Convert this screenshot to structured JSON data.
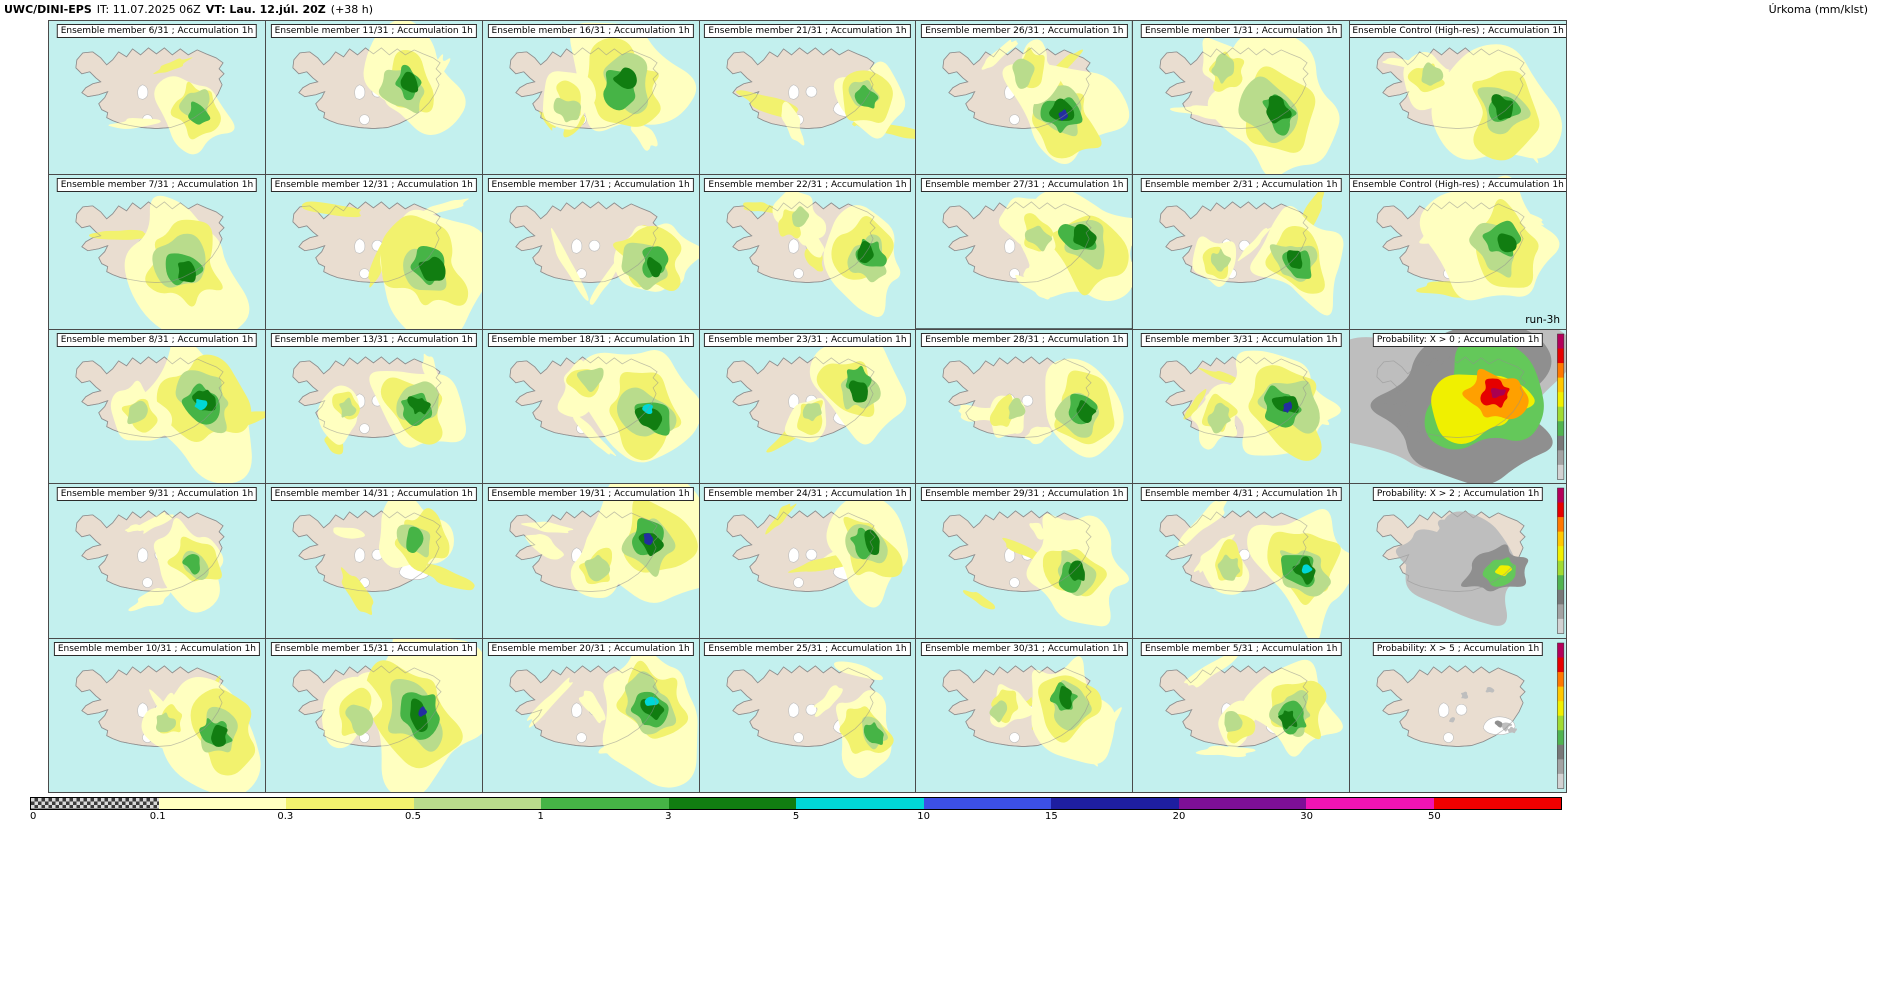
{
  "header": {
    "model": "UWC/DINI-EPS",
    "init": "IT: 11.07.2025 06Z",
    "valid": "VT: Lau. 12.júl. 20Z",
    "lead": "(+38 h)",
    "unit": "Úrkoma (mm/klst)"
  },
  "palette": {
    "ocean": "#c3f0ee",
    "land": "#e9ddd0",
    "coast": "#8f8f8f",
    "glacier": "#ffffff",
    "precip": [
      "#ffffc0",
      "#f2f26e",
      "#b9dc8c",
      "#46b446",
      "#117d11"
    ],
    "cyan": "#00d7d7",
    "navy": "#232da0"
  },
  "prob_colorbar_top_to_bottom": [
    "#b4005a",
    "#e60000",
    "#ff7800",
    "#ffc800",
    "#f0f000",
    "#a0dc32",
    "#50b450",
    "#787878",
    "#a3a3a3",
    "#d2d2d2"
  ],
  "legend": {
    "tick_labels": [
      "0",
      "0.1",
      "0.3",
      "0.5",
      "1",
      "3",
      "5",
      "10",
      "15",
      "20",
      "30",
      "50"
    ],
    "colors": [
      "checker",
      "#ffffc0",
      "#f2f26e",
      "#b9dc8c",
      "#46b446",
      "#117d11",
      "#00d7d7",
      "#3c50e6",
      "#1e1ea0",
      "#7d0f96",
      "#f014b4",
      "#f00000"
    ]
  },
  "panels": [
    {
      "title": "Ensemble member 6/31 ; Accumulation 1h",
      "kind": "member",
      "i": 1,
      "core": "none"
    },
    {
      "title": "Ensemble member 11/31 ; Accumulation 1h",
      "kind": "member",
      "i": 2,
      "core": "none"
    },
    {
      "title": "Ensemble member 16/31 ; Accumulation 1h",
      "kind": "member",
      "i": 3,
      "core": "none"
    },
    {
      "title": "Ensemble member 21/31 ; Accumulation 1h",
      "kind": "member",
      "i": 1,
      "core": "none"
    },
    {
      "title": "Ensemble member 26/31 ; Accumulation 1h",
      "kind": "member",
      "i": 3,
      "core": "navy",
      "selected": true
    },
    {
      "title": "Ensemble member 1/31 ; Accumulation 1h",
      "kind": "member",
      "i": 3,
      "core": "none"
    },
    {
      "title": "Ensemble Control (High-res) ; Accumulation 1h",
      "kind": "control",
      "i": 3,
      "core": "none"
    },
    {
      "title": "Ensemble member 7/31 ; Accumulation 1h",
      "kind": "member",
      "i": 3,
      "core": "none"
    },
    {
      "title": "Ensemble member 12/31 ; Accumulation 1h",
      "kind": "member",
      "i": 3,
      "core": "none"
    },
    {
      "title": "Ensemble member 17/31 ; Accumulation 1h",
      "kind": "member",
      "i": 2,
      "core": "none"
    },
    {
      "title": "Ensemble member 22/31 ; Accumulation 1h",
      "kind": "member",
      "i": 2,
      "core": "none"
    },
    {
      "title": "Ensemble member 27/31 ; Accumulation 1h",
      "kind": "member",
      "i": 3,
      "core": "none",
      "selected": true
    },
    {
      "title": "Ensemble member 2/31 ; Accumulation 1h",
      "kind": "member",
      "i": 2,
      "core": "none"
    },
    {
      "title": "Ensemble Control (High-res) ; Accumulation 1h",
      "kind": "control",
      "i": 3,
      "core": "none",
      "corner": "run-3h"
    },
    {
      "title": "Ensemble member 8/31 ; Accumulation 1h",
      "kind": "member",
      "i": 3,
      "core": "cyan"
    },
    {
      "title": "Ensemble member 13/31 ; Accumulation 1h",
      "kind": "member",
      "i": 2,
      "core": "none"
    },
    {
      "title": "Ensemble member 18/31 ; Accumulation 1h",
      "kind": "member",
      "i": 3,
      "core": "cyan"
    },
    {
      "title": "Ensemble member 23/31 ; Accumulation 1h",
      "kind": "member",
      "i": 2,
      "core": "none"
    },
    {
      "title": "Ensemble member 28/31 ; Accumulation 1h",
      "kind": "member",
      "i": 2,
      "core": "none"
    },
    {
      "title": "Ensemble member 3/31 ; Accumulation 1h",
      "kind": "member",
      "i": 3,
      "core": "navy"
    },
    {
      "title": "Probability: X > 0 ; Accumulation 1h",
      "kind": "prob",
      "level": 0
    },
    {
      "title": "Ensemble member 9/31 ; Accumulation 1h",
      "kind": "member",
      "i": 1,
      "core": "none"
    },
    {
      "title": "Ensemble member 14/31 ; Accumulation 1h",
      "kind": "member",
      "i": 1,
      "core": "none"
    },
    {
      "title": "Ensemble member 19/31 ; Accumulation 1h",
      "kind": "member",
      "i": 3,
      "core": "navy"
    },
    {
      "title": "Ensemble member 24/31 ; Accumulation 1h",
      "kind": "member",
      "i": 2,
      "core": "none"
    },
    {
      "title": "Ensemble member 29/31 ; Accumulation 1h",
      "kind": "member",
      "i": 2,
      "core": "none"
    },
    {
      "title": "Ensemble member 4/31 ; Accumulation 1h",
      "kind": "member",
      "i": 3,
      "core": "cyan"
    },
    {
      "title": "Probability: X > 2 ; Accumulation 1h",
      "kind": "prob",
      "level": 2
    },
    {
      "title": "Ensemble member 10/31 ; Accumulation 1h",
      "kind": "member",
      "i": 2,
      "core": "none"
    },
    {
      "title": "Ensemble member 15/31 ; Accumulation 1h",
      "kind": "member",
      "i": 4,
      "core": "navy"
    },
    {
      "title": "Ensemble member 20/31 ; Accumulation 1h",
      "kind": "member",
      "i": 3,
      "core": "cyan"
    },
    {
      "title": "Ensemble member 25/31 ; Accumulation 1h",
      "kind": "member",
      "i": 1,
      "core": "none"
    },
    {
      "title": "Ensemble member 30/31 ; Accumulation 1h",
      "kind": "member",
      "i": 2,
      "core": "none"
    },
    {
      "title": "Ensemble member 5/31 ; Accumulation 1h",
      "kind": "member",
      "i": 2,
      "core": "none"
    },
    {
      "title": "Probability: X > 5 ; Accumulation 1h",
      "kind": "prob",
      "level": 5
    }
  ]
}
